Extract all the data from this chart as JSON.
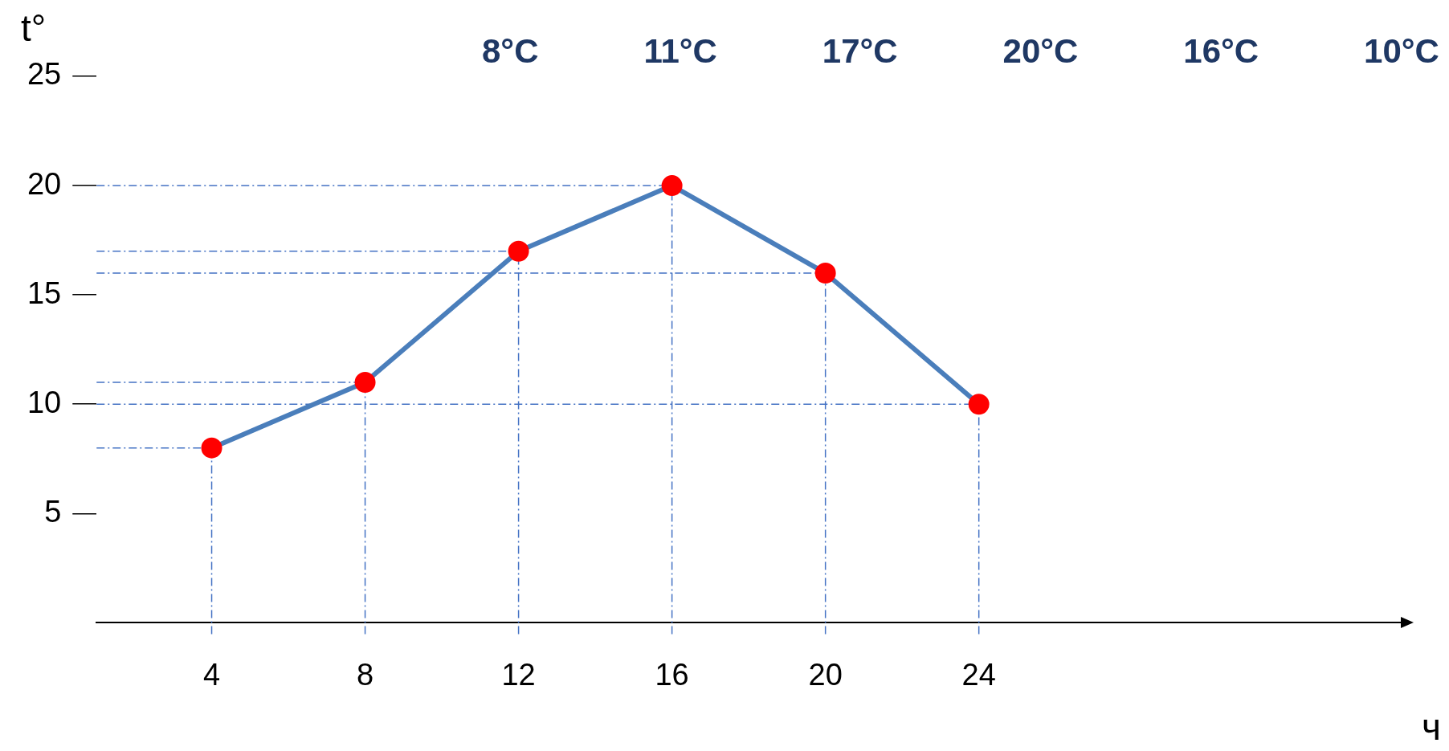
{
  "chart_data": {
    "type": "line",
    "xlabel": "ч",
    "ylabel": "t°",
    "x": [
      4,
      8,
      12,
      16,
      20,
      24
    ],
    "series": [
      {
        "color": "#4a7ebb",
        "values": [
          8,
          11,
          17,
          20,
          16,
          10
        ]
      }
    ],
    "marker": "circle",
    "line_style": "solid",
    "grid": false,
    "legend": false,
    "xlim": [
      1,
      35
    ],
    "ylim": [
      0,
      25
    ],
    "xticks": [
      4,
      8,
      12,
      16,
      20,
      24
    ],
    "yticks": [
      5,
      10,
      15,
      20,
      25
    ],
    "ref_lines": [
      {
        "axis": "y",
        "value": 8,
        "color": "#4472c4",
        "line_style": "dashdot"
      },
      {
        "axis": "y",
        "value": 11,
        "color": "#4472c4",
        "line_style": "dashdot"
      },
      {
        "axis": "y",
        "value": 17,
        "color": "#4472c4",
        "line_style": "dashdot"
      },
      {
        "axis": "y",
        "value": 20,
        "color": "#4472c4",
        "line_style": "dashdot"
      },
      {
        "axis": "y",
        "value": 16,
        "color": "#4472c4",
        "line_style": "dashdot"
      },
      {
        "axis": "y",
        "value": 10,
        "color": "#4472c4",
        "line_style": "dashdot"
      },
      {
        "axis": "x",
        "value": 4,
        "color": "#4472c4",
        "line_style": "dashdot"
      },
      {
        "axis": "x",
        "value": 8,
        "color": "#4472c4",
        "line_style": "dashdot"
      },
      {
        "axis": "x",
        "value": 12,
        "color": "#4472c4",
        "line_style": "dashdot"
      },
      {
        "axis": "x",
        "value": 16,
        "color": "#4472c4",
        "line_style": "dashdot"
      },
      {
        "axis": "x",
        "value": 20,
        "color": "#4472c4",
        "line_style": "dashdot"
      },
      {
        "axis": "x",
        "value": 24,
        "color": "#4472c4",
        "line_style": "dashdot"
      }
    ],
    "annotations": [
      "8°C",
      "11°C",
      "17°C",
      "20°C",
      "16°C",
      "10°C"
    ]
  }
}
